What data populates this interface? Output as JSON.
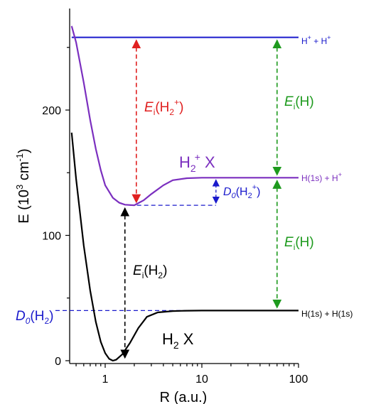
{
  "chart_data": {
    "type": "line",
    "xlabel": "R (a.u.)",
    "ylabel_main": "E (10",
    "ylabel_sup1": "3",
    "ylabel_mid": " cm",
    "ylabel_sup2": "-1",
    "ylabel_end": ")",
    "x_scale": "log",
    "xlim": [
      0.45,
      100
    ],
    "ylim": [
      -3,
      270
    ],
    "x_ticks": [
      {
        "value": 1,
        "label": "1"
      },
      {
        "value": 10,
        "label": "10"
      },
      {
        "value": 100,
        "label": "100"
      }
    ],
    "y_ticks": [
      {
        "value": 0,
        "label": "0"
      },
      {
        "value": 100,
        "label": "100"
      },
      {
        "value": 200,
        "label": "200"
      }
    ],
    "colors": {
      "h2": "#000000",
      "h2plus": "#7b2fbf",
      "limit": "#1a1acc",
      "ei_h2plus": "#e02020",
      "ei_h": "#1e9a1e",
      "d0": "#1a1acc"
    },
    "series": [
      {
        "name": "H2 X",
        "color_key": "h2",
        "points": [
          [
            0.45,
            182
          ],
          [
            0.5,
            145
          ],
          [
            0.6,
            92
          ],
          [
            0.7,
            56
          ],
          [
            0.8,
            31
          ],
          [
            0.9,
            15
          ],
          [
            1.0,
            6
          ],
          [
            1.1,
            1.5
          ],
          [
            1.2,
            0
          ],
          [
            1.3,
            0.8
          ],
          [
            1.5,
            5
          ],
          [
            1.8,
            14
          ],
          [
            2.2,
            26
          ],
          [
            2.7,
            35
          ],
          [
            3.5,
            38.5
          ],
          [
            5,
            39.6
          ],
          [
            7,
            39.9
          ],
          [
            10,
            40
          ],
          [
            100,
            40
          ]
        ]
      },
      {
        "name": "H2+ X",
        "color_key": "h2plus",
        "points": [
          [
            0.45,
            267
          ],
          [
            0.5,
            254
          ],
          [
            0.6,
            222
          ],
          [
            0.7,
            192
          ],
          [
            0.8,
            169
          ],
          [
            0.9,
            152
          ],
          [
            1.0,
            140
          ],
          [
            1.2,
            130
          ],
          [
            1.4,
            126
          ],
          [
            1.6,
            124.5
          ],
          [
            2.0,
            124
          ],
          [
            2.5,
            128
          ],
          [
            3.0,
            133
          ],
          [
            4,
            140
          ],
          [
            5,
            144
          ],
          [
            7,
            145.6
          ],
          [
            10,
            146
          ],
          [
            100,
            146
          ]
        ]
      }
    ],
    "levels": [
      {
        "label_main": "H",
        "label_sup": "+",
        "label_mid": " + H",
        "label_sup2": "+",
        "y": 258,
        "color_key": "limit"
      },
      {
        "label_main": "H(1s) + H",
        "label_sup": "+",
        "label_mid": "",
        "label_sup2": "",
        "y": 146,
        "color_key": "h2plus"
      },
      {
        "label_main": "H(1s) + H(1s)",
        "label_sup": "",
        "label_mid": "",
        "label_sup2": "",
        "y": 40,
        "color_key": "h2"
      }
    ],
    "curve_labels": {
      "h2plus": {
        "main": "H",
        "sub": "2",
        "sup": "+",
        "rest": " X"
      },
      "h2": {
        "main": "H",
        "sub": "2",
        "rest": " X"
      }
    },
    "annotations": {
      "ei_h2plus": {
        "e": "E",
        "i": "i",
        "open": "(H",
        "sub": "2",
        "sup": "+",
        "close": ")"
      },
      "ei_h_upper": {
        "e": "E",
        "i": "i",
        "rest": "(H)"
      },
      "ei_h_lower": {
        "e": "E",
        "i": "i",
        "rest": "(H)"
      },
      "d0_h2plus": {
        "d": "D",
        "zero": "0",
        "open": "(H",
        "sub": "2",
        "sup": "+",
        "close": ")"
      },
      "ei_h2": {
        "e": "E",
        "i": "i",
        "open": "(H",
        "sub": "2",
        "close": ")"
      },
      "d0_h2": {
        "d": "D",
        "zero": "0",
        "open": "(H",
        "sub": "2",
        "close": ")"
      }
    }
  }
}
